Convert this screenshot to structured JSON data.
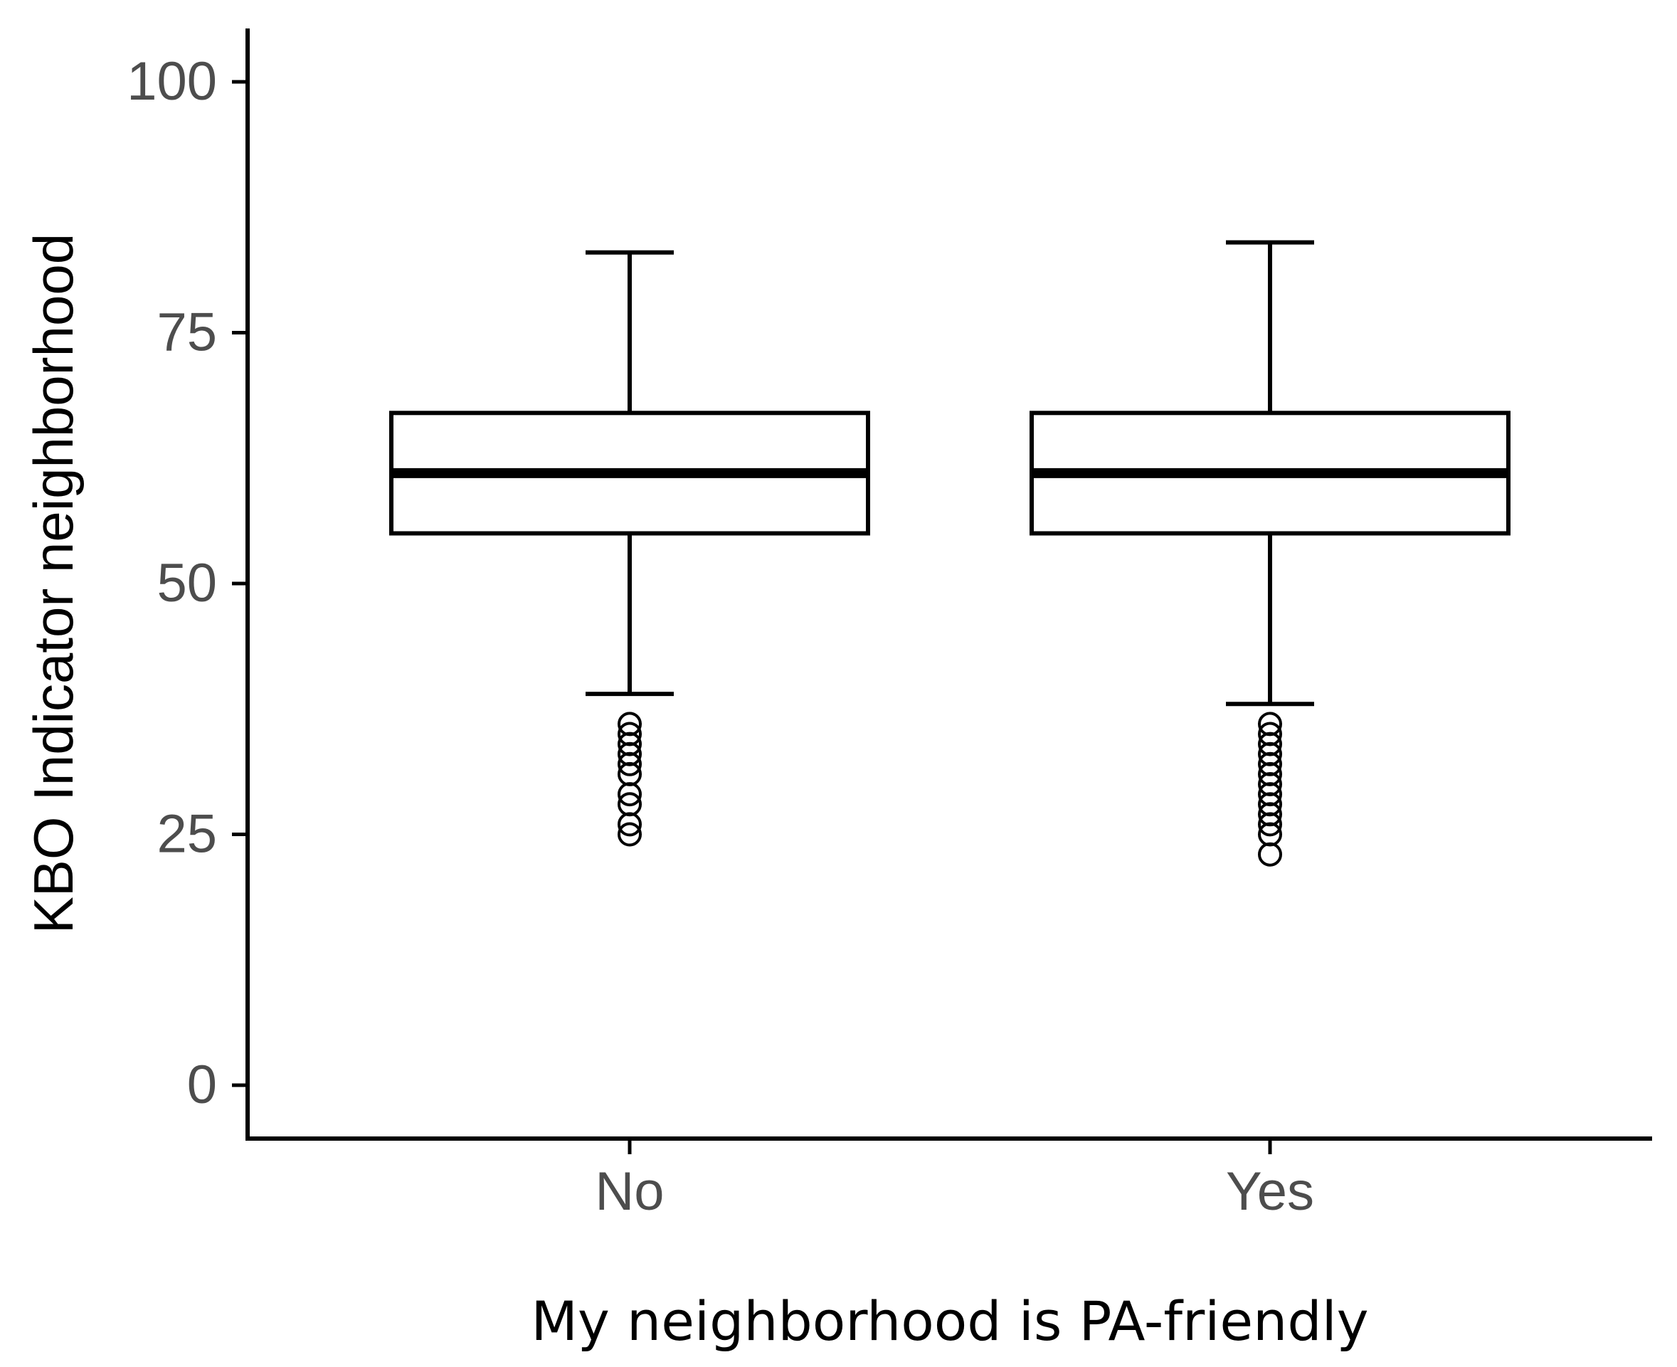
{
  "chart_data": {
    "type": "box",
    "title": "",
    "xlabel": "My neighborhood is PA-friendly",
    "ylabel": "KBO Indicator neighborhood",
    "ylim": [
      -5,
      105
    ],
    "yticks": [
      0,
      25,
      50,
      75,
      100
    ],
    "categories": [
      "No",
      "Yes"
    ],
    "boxes": [
      {
        "category": "No",
        "whisker_low": 39,
        "q1": 55,
        "median": 61,
        "q3": 67,
        "whisker_high": 83,
        "outliers": [
          25,
          26,
          28,
          29,
          31,
          32,
          33,
          34,
          35,
          36
        ]
      },
      {
        "category": "Yes",
        "whisker_low": 38,
        "q1": 55,
        "median": 61,
        "q3": 67,
        "whisker_high": 84,
        "outliers": [
          23,
          25,
          26,
          27,
          28,
          29,
          30,
          31,
          32,
          33,
          34,
          35,
          36
        ]
      }
    ],
    "grid": false,
    "legend": "none"
  }
}
